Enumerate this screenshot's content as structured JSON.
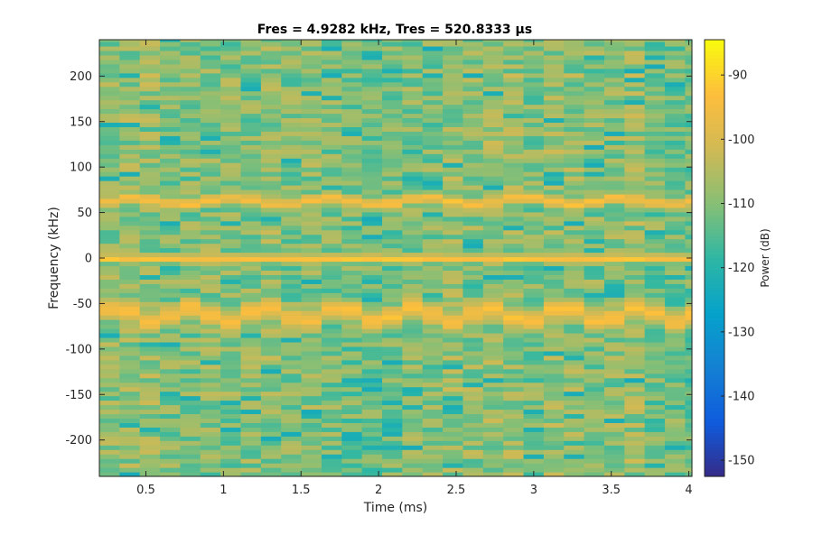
{
  "chart_data": {
    "type": "heatmap",
    "title": "Fres = 4.9282 kHz, Tres = 520.8333 μs",
    "xlabel": "Time (ms)",
    "ylabel": "Frequency (kHz)",
    "colorbar_label": "Power (dB)",
    "xlim": [
      0.2,
      4.02
    ],
    "ylim": [
      -240,
      240
    ],
    "clim": [
      -152.5,
      -84.5
    ],
    "colormap": "parula",
    "x_ticks": [
      0.5,
      1,
      1.5,
      2,
      2.5,
      3,
      3.5,
      4
    ],
    "x_tick_labels": [
      "0.5",
      "1",
      "1.5",
      "2",
      "2.5",
      "3",
      "3.5",
      "4"
    ],
    "y_ticks": [
      -200,
      -150,
      -100,
      -50,
      0,
      50,
      100,
      150,
      200
    ],
    "y_tick_labels": [
      "-200",
      "-150",
      "-100",
      "-50",
      "0",
      "50",
      "100",
      "150",
      "200"
    ],
    "colorbar_ticks": [
      -150,
      -140,
      -130,
      -120,
      -110,
      -100,
      -90
    ],
    "colorbar_tick_labels": [
      "-150",
      "-140",
      "-130",
      "-120",
      "-110",
      "-100",
      "-90"
    ],
    "time_columns": 30,
    "time_step_ms": 0.1302,
    "frequency_step_khz": 4.9282,
    "background_power_db": -110,
    "features": [
      {
        "name": "dc-component",
        "frequency_khz": 0,
        "power_db": -92
      },
      {
        "name": "upper-tone",
        "frequency_khz_range": [
          56,
          70
        ],
        "power_db": -94
      },
      {
        "name": "lower-tone",
        "frequency_khz_range": [
          -70,
          -45
        ],
        "power_db": -94
      }
    ]
  }
}
